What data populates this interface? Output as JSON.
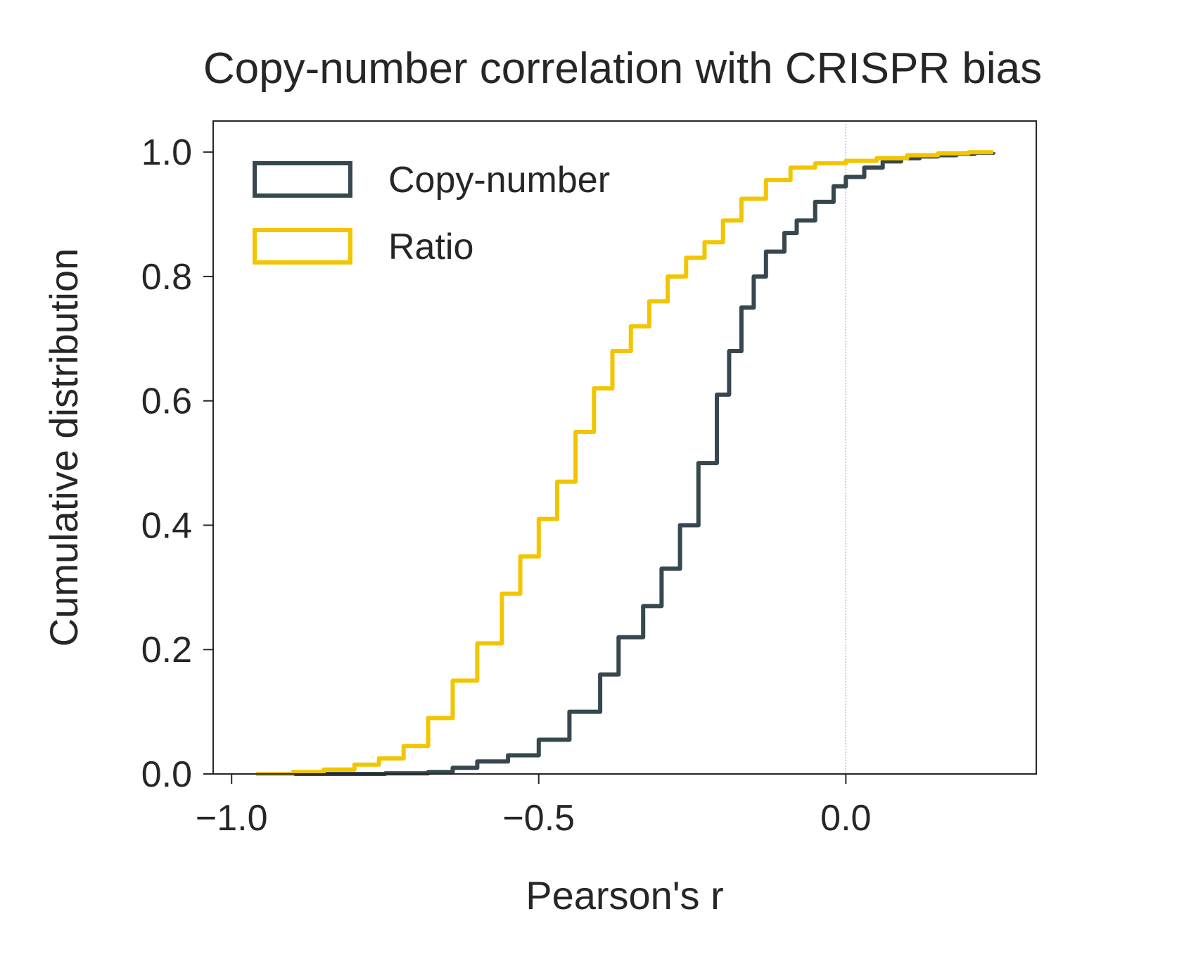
{
  "chart_data": {
    "type": "line",
    "title": "Copy-number correlation with CRISPR bias",
    "xlabel": "Pearson's r",
    "ylabel": "Cumulative distribution",
    "xlim": [
      -1.03,
      0.31
    ],
    "ylim": [
      0.0,
      1.05
    ],
    "xticks": [
      -1.0,
      -0.5,
      0.0
    ],
    "xtick_labels": [
      "−1.0",
      "−0.5",
      "0.0"
    ],
    "yticks": [
      0.0,
      0.2,
      0.4,
      0.6,
      0.8,
      1.0
    ],
    "ytick_labels": [
      "0.0",
      "0.2",
      "0.4",
      "0.6",
      "0.8",
      "1.0"
    ],
    "reference_line": {
      "x": 0.0,
      "style": "dotted",
      "color": "#aaaaaa"
    },
    "legend": {
      "position": "top-left"
    },
    "grid": false,
    "series": [
      {
        "name": "Copy-number",
        "color": "#37474f",
        "x": [
          -0.95,
          -0.85,
          -0.75,
          -0.68,
          -0.64,
          -0.6,
          -0.55,
          -0.5,
          -0.45,
          -0.4,
          -0.37,
          -0.33,
          -0.3,
          -0.27,
          -0.24,
          -0.21,
          -0.19,
          -0.17,
          -0.15,
          -0.13,
          -0.1,
          -0.08,
          -0.05,
          -0.02,
          0.0,
          0.03,
          0.06,
          0.09,
          0.12,
          0.15,
          0.18,
          0.21,
          0.24
        ],
        "y": [
          0.0,
          0.0,
          0.001,
          0.003,
          0.01,
          0.02,
          0.03,
          0.055,
          0.1,
          0.16,
          0.22,
          0.27,
          0.33,
          0.4,
          0.5,
          0.61,
          0.68,
          0.75,
          0.8,
          0.84,
          0.87,
          0.89,
          0.92,
          0.945,
          0.96,
          0.975,
          0.985,
          0.99,
          0.993,
          0.995,
          0.997,
          0.999,
          1.0
        ]
      },
      {
        "name": "Ratio",
        "color": "#f2c500",
        "x": [
          -0.96,
          -0.9,
          -0.85,
          -0.8,
          -0.76,
          -0.72,
          -0.68,
          -0.64,
          -0.6,
          -0.56,
          -0.53,
          -0.5,
          -0.47,
          -0.44,
          -0.41,
          -0.38,
          -0.35,
          -0.32,
          -0.29,
          -0.26,
          -0.23,
          -0.2,
          -0.17,
          -0.13,
          -0.09,
          -0.05,
          0.0,
          0.05,
          0.1,
          0.15,
          0.2,
          0.24
        ],
        "y": [
          0.0,
          0.003,
          0.007,
          0.015,
          0.025,
          0.045,
          0.09,
          0.15,
          0.21,
          0.29,
          0.35,
          0.41,
          0.47,
          0.55,
          0.62,
          0.68,
          0.72,
          0.76,
          0.8,
          0.83,
          0.855,
          0.89,
          0.925,
          0.955,
          0.975,
          0.982,
          0.986,
          0.99,
          0.995,
          0.998,
          1.0,
          1.0
        ]
      }
    ]
  }
}
